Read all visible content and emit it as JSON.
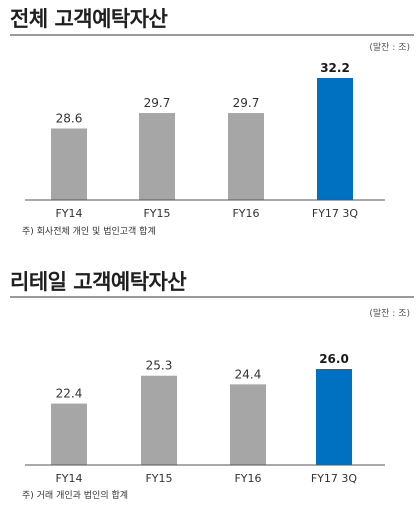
{
  "colors": {
    "bar": "#a6a6a6",
    "highlight": "#0070c0",
    "baseline": "#555555",
    "label": "#333333"
  },
  "chart_data": [
    {
      "type": "bar",
      "title": "전체 고객예탁자산",
      "unit": "(말잔 : 조)",
      "categories": [
        "FY14",
        "FY15",
        "FY16",
        "FY17 3Q"
      ],
      "values": [
        28.6,
        29.7,
        29.7,
        32.2
      ],
      "data_labels": [
        "28.6",
        "29.7",
        "29.7",
        "32.2"
      ],
      "highlight_index": 3,
      "footnote": "주) 회사전체 개인 및 법인고객 합계"
    },
    {
      "type": "bar",
      "title": "리테일 고객예탁자산",
      "unit": "(말잔 : 조)",
      "categories": [
        "FY14",
        "FY15",
        "FY16",
        "FY17 3Q"
      ],
      "values": [
        22.4,
        25.3,
        24.4,
        26.0
      ],
      "data_labels": [
        "22.4",
        "25.3",
        "24.4",
        "26.0"
      ],
      "highlight_index": 3,
      "footnote": "주) 거래 개인과 법인의 합계"
    }
  ]
}
